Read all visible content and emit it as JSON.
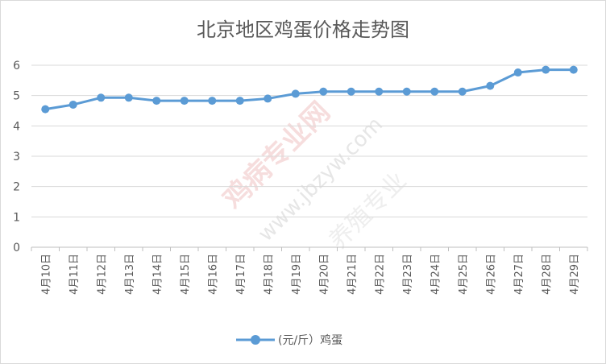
{
  "chart_data": {
    "type": "line",
    "title": "北京地区鸡蛋价格走势图",
    "categories": [
      "4月10日",
      "4月11日",
      "4月12日",
      "4月13日",
      "4月14日",
      "4月15日",
      "4月16日",
      "4月17日",
      "4月18日",
      "4月19日",
      "4月20日",
      "4月21日",
      "4月22日",
      "4月23日",
      "4月24日",
      "4月25日",
      "4月26日",
      "4月27日",
      "4月28日",
      "4月29日"
    ],
    "series": [
      {
        "name": "(元/斤）鸡蛋",
        "values": [
          4.55,
          4.7,
          4.93,
          4.93,
          4.83,
          4.83,
          4.83,
          4.83,
          4.9,
          5.06,
          5.13,
          5.13,
          5.13,
          5.13,
          5.13,
          5.13,
          5.32,
          5.76,
          5.85,
          5.85
        ],
        "color": "#5b9bd5"
      }
    ],
    "ylim": [
      0,
      6
    ],
    "yticks": [
      "0",
      "1",
      "2",
      "3",
      "4",
      "5",
      "6"
    ],
    "grid": true,
    "legend_position": "bottom",
    "xlabel": "",
    "ylabel": ""
  },
  "watermark": {
    "brand": "鸡病专业网",
    "url": "www.jbzyw.com",
    "sub": "养殖专业"
  }
}
